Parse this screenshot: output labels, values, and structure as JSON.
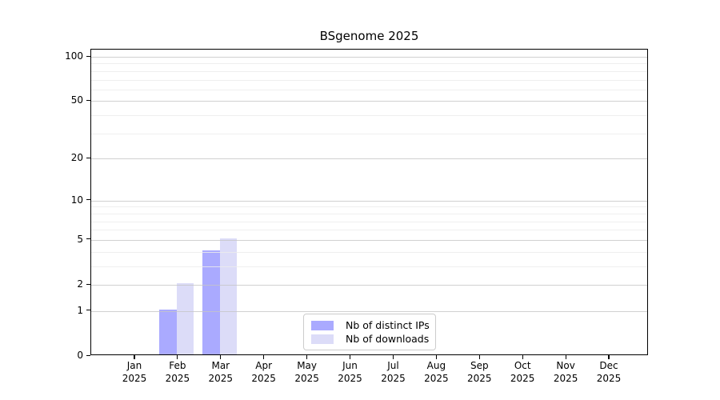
{
  "title": "BSgenome 2025",
  "chart_data": {
    "type": "bar",
    "title": "BSgenome 2025",
    "categories": [
      "Jan",
      "Feb",
      "Mar",
      "Apr",
      "May",
      "Jun",
      "Jul",
      "Aug",
      "Sep",
      "Oct",
      "Nov",
      "Dec"
    ],
    "category_year": "2025",
    "series": [
      {
        "name": "Nb of distinct IPs",
        "color": "#aaaaff",
        "values": [
          0,
          1,
          4,
          0,
          0,
          0,
          0,
          0,
          0,
          0,
          0,
          0
        ]
      },
      {
        "name": "Nb of downloads",
        "color": "#dcdcf8",
        "values": [
          0,
          2,
          5,
          0,
          0,
          0,
          0,
          0,
          0,
          0,
          0,
          0
        ]
      }
    ],
    "xlabel": "",
    "ylabel": "",
    "y_axis": {
      "scale": "log1p",
      "tick_values": [
        0,
        1,
        2,
        5,
        10,
        20,
        50,
        100
      ],
      "minor_tick_values": [
        3,
        4,
        6,
        7,
        8,
        9,
        30,
        40,
        60,
        70,
        80,
        90
      ],
      "ylim": [
        0,
        112
      ]
    },
    "legend": {
      "position": "bottom-center",
      "entries": [
        "Nb of distinct IPs",
        "Nb of downloads"
      ]
    },
    "grid": true
  },
  "colors": {
    "background": "#ffffff",
    "axis": "#000000",
    "grid_major": "#c6c6c6",
    "grid_minor": "#ececec",
    "legend_border": "#cccccc",
    "bar_distinct_ips": "#aaaaff",
    "bar_downloads": "#dcdcf8"
  }
}
